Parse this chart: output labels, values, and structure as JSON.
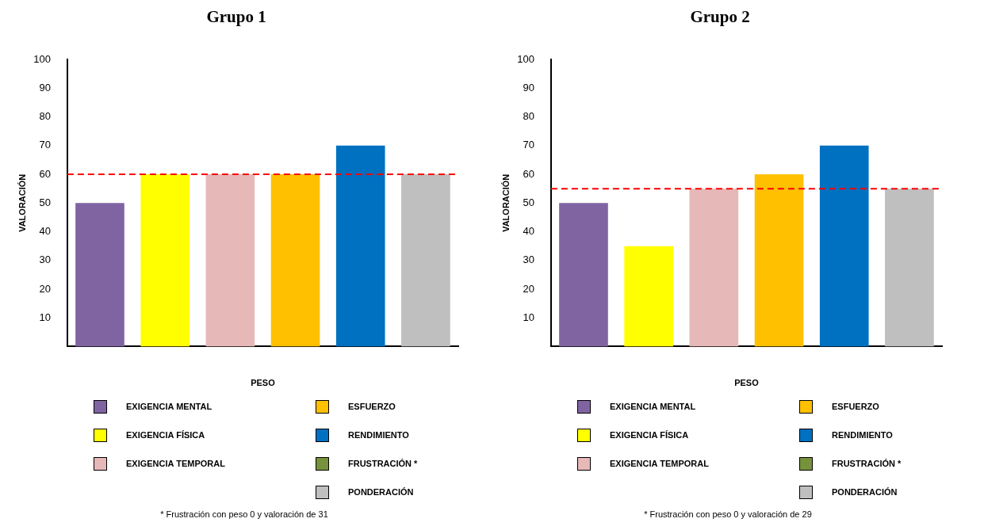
{
  "chart_data": [
    {
      "type": "bar",
      "title": "Grupo 1",
      "xlabel": "PESO",
      "ylabel": "VALORACIÓN",
      "categories": [
        null,
        null,
        null,
        null,
        null,
        null
      ],
      "series": [
        {
          "name": "EXIGENCIA MENTAL",
          "color": "#8064a2",
          "values": [
            50,
            null,
            null,
            null,
            null,
            null
          ]
        },
        {
          "name": "EXIGENCIA FÍSICA",
          "color": "#ffff00",
          "values": [
            null,
            60,
            null,
            null,
            null,
            null
          ]
        },
        {
          "name": "EXIGENCIA TEMPORAL",
          "color": "#e6b8b7",
          "values": [
            null,
            null,
            60,
            null,
            null,
            null
          ]
        },
        {
          "name": "ESFUERZO",
          "color": "#ffc000",
          "values": [
            null,
            null,
            null,
            60,
            null,
            null
          ]
        },
        {
          "name": "RENDIMIENTO",
          "color": "#0070c0",
          "values": [
            null,
            null,
            null,
            null,
            70,
            null
          ]
        },
        {
          "name": "FRUSTRACIÓN *",
          "color": "#76923c",
          "values": [
            null,
            null,
            null,
            null,
            null,
            null
          ]
        },
        {
          "name": "PONDERACIÓN",
          "color": "#bfbfbf",
          "values": [
            null,
            null,
            null,
            null,
            null,
            60
          ]
        }
      ],
      "ylim": [
        0,
        100
      ],
      "yticks": [
        10,
        20,
        30,
        40,
        50,
        60,
        70,
        80,
        90,
        100
      ],
      "ref_lines": [
        {
          "axis": "y",
          "value": 60,
          "color": "#ff0000",
          "line_style": "dashed"
        }
      ],
      "legend": "bottom",
      "grid": false,
      "annotations": [
        "* Frustración con peso 0 y valoración de 31"
      ]
    },
    {
      "type": "bar",
      "title": "Grupo 2",
      "xlabel": "PESO",
      "ylabel": "VALORACIÓN",
      "categories": [
        null,
        null,
        null,
        null,
        null,
        null
      ],
      "series": [
        {
          "name": "EXIGENCIA MENTAL",
          "color": "#8064a2",
          "values": [
            50,
            null,
            null,
            null,
            null,
            null
          ]
        },
        {
          "name": "EXIGENCIA FÍSICA",
          "color": "#ffff00",
          "values": [
            null,
            35,
            null,
            null,
            null,
            null
          ]
        },
        {
          "name": "EXIGENCIA TEMPORAL",
          "color": "#e6b8b7",
          "values": [
            null,
            null,
            55,
            null,
            null,
            null
          ]
        },
        {
          "name": "ESFUERZO",
          "color": "#ffc000",
          "values": [
            null,
            null,
            null,
            60,
            null,
            null
          ]
        },
        {
          "name": "RENDIMIENTO",
          "color": "#0070c0",
          "values": [
            null,
            null,
            null,
            null,
            70,
            null
          ]
        },
        {
          "name": "FRUSTRACIÓN *",
          "color": "#76923c",
          "values": [
            null,
            null,
            null,
            null,
            null,
            null
          ]
        },
        {
          "name": "PONDERACIÓN",
          "color": "#bfbfbf",
          "values": [
            null,
            null,
            null,
            null,
            null,
            55
          ]
        }
      ],
      "ylim": [
        0,
        100
      ],
      "yticks": [
        10,
        20,
        30,
        40,
        50,
        60,
        70,
        80,
        90,
        100
      ],
      "ref_lines": [
        {
          "axis": "y",
          "value": 55,
          "color": "#ff0000",
          "line_style": "dashed"
        }
      ],
      "legend": "bottom",
      "grid": false,
      "annotations": [
        "* Frustración con peso 0 y valoración de 29"
      ]
    }
  ]
}
